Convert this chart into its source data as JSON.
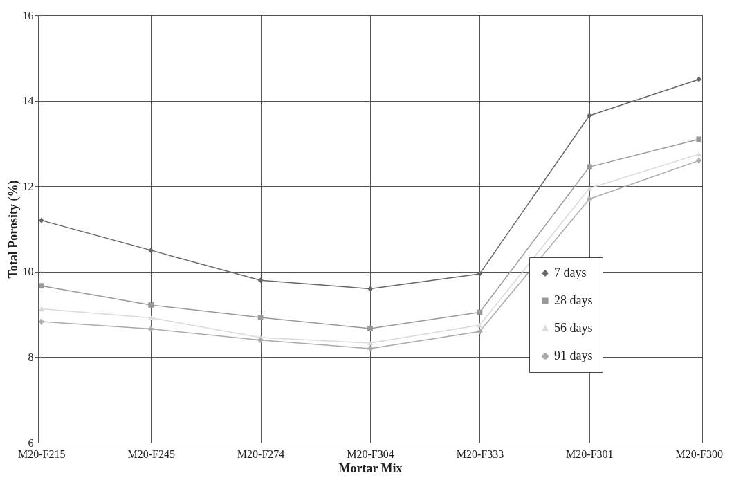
{
  "chart_data": {
    "type": "line",
    "xlabel": "Mortar Mix",
    "ylabel": "Total Porosity (%)",
    "categories": [
      "M20-F215",
      "M20-F245",
      "M20-F274",
      "M20-F304",
      "M20-F333",
      "M20-F301",
      "M20-F300"
    ],
    "series": [
      {
        "name": "7 days",
        "color": "#666666",
        "marker": "diamond",
        "values": [
          11.2,
          10.5,
          9.8,
          9.6,
          9.95,
          13.65,
          14.5
        ]
      },
      {
        "name": "28 days",
        "color": "#999999",
        "marker": "square",
        "values": [
          9.67,
          9.22,
          8.93,
          8.67,
          9.05,
          12.45,
          13.1
        ]
      },
      {
        "name": "56 days",
        "color": "#d9d9d9",
        "marker": "triangle",
        "values": [
          9.13,
          8.92,
          8.46,
          8.33,
          8.75,
          11.95,
          12.75
        ]
      },
      {
        "name": "91 days",
        "color": "#aaaaaa",
        "marker": "cross",
        "values": [
          8.83,
          8.66,
          8.4,
          8.2,
          8.6,
          11.7,
          12.6
        ]
      }
    ],
    "ylim": [
      6,
      16
    ],
    "yticks": [
      6,
      8,
      10,
      12,
      14,
      16
    ],
    "grid": true,
    "legend": "right",
    "line_style": "solid"
  }
}
